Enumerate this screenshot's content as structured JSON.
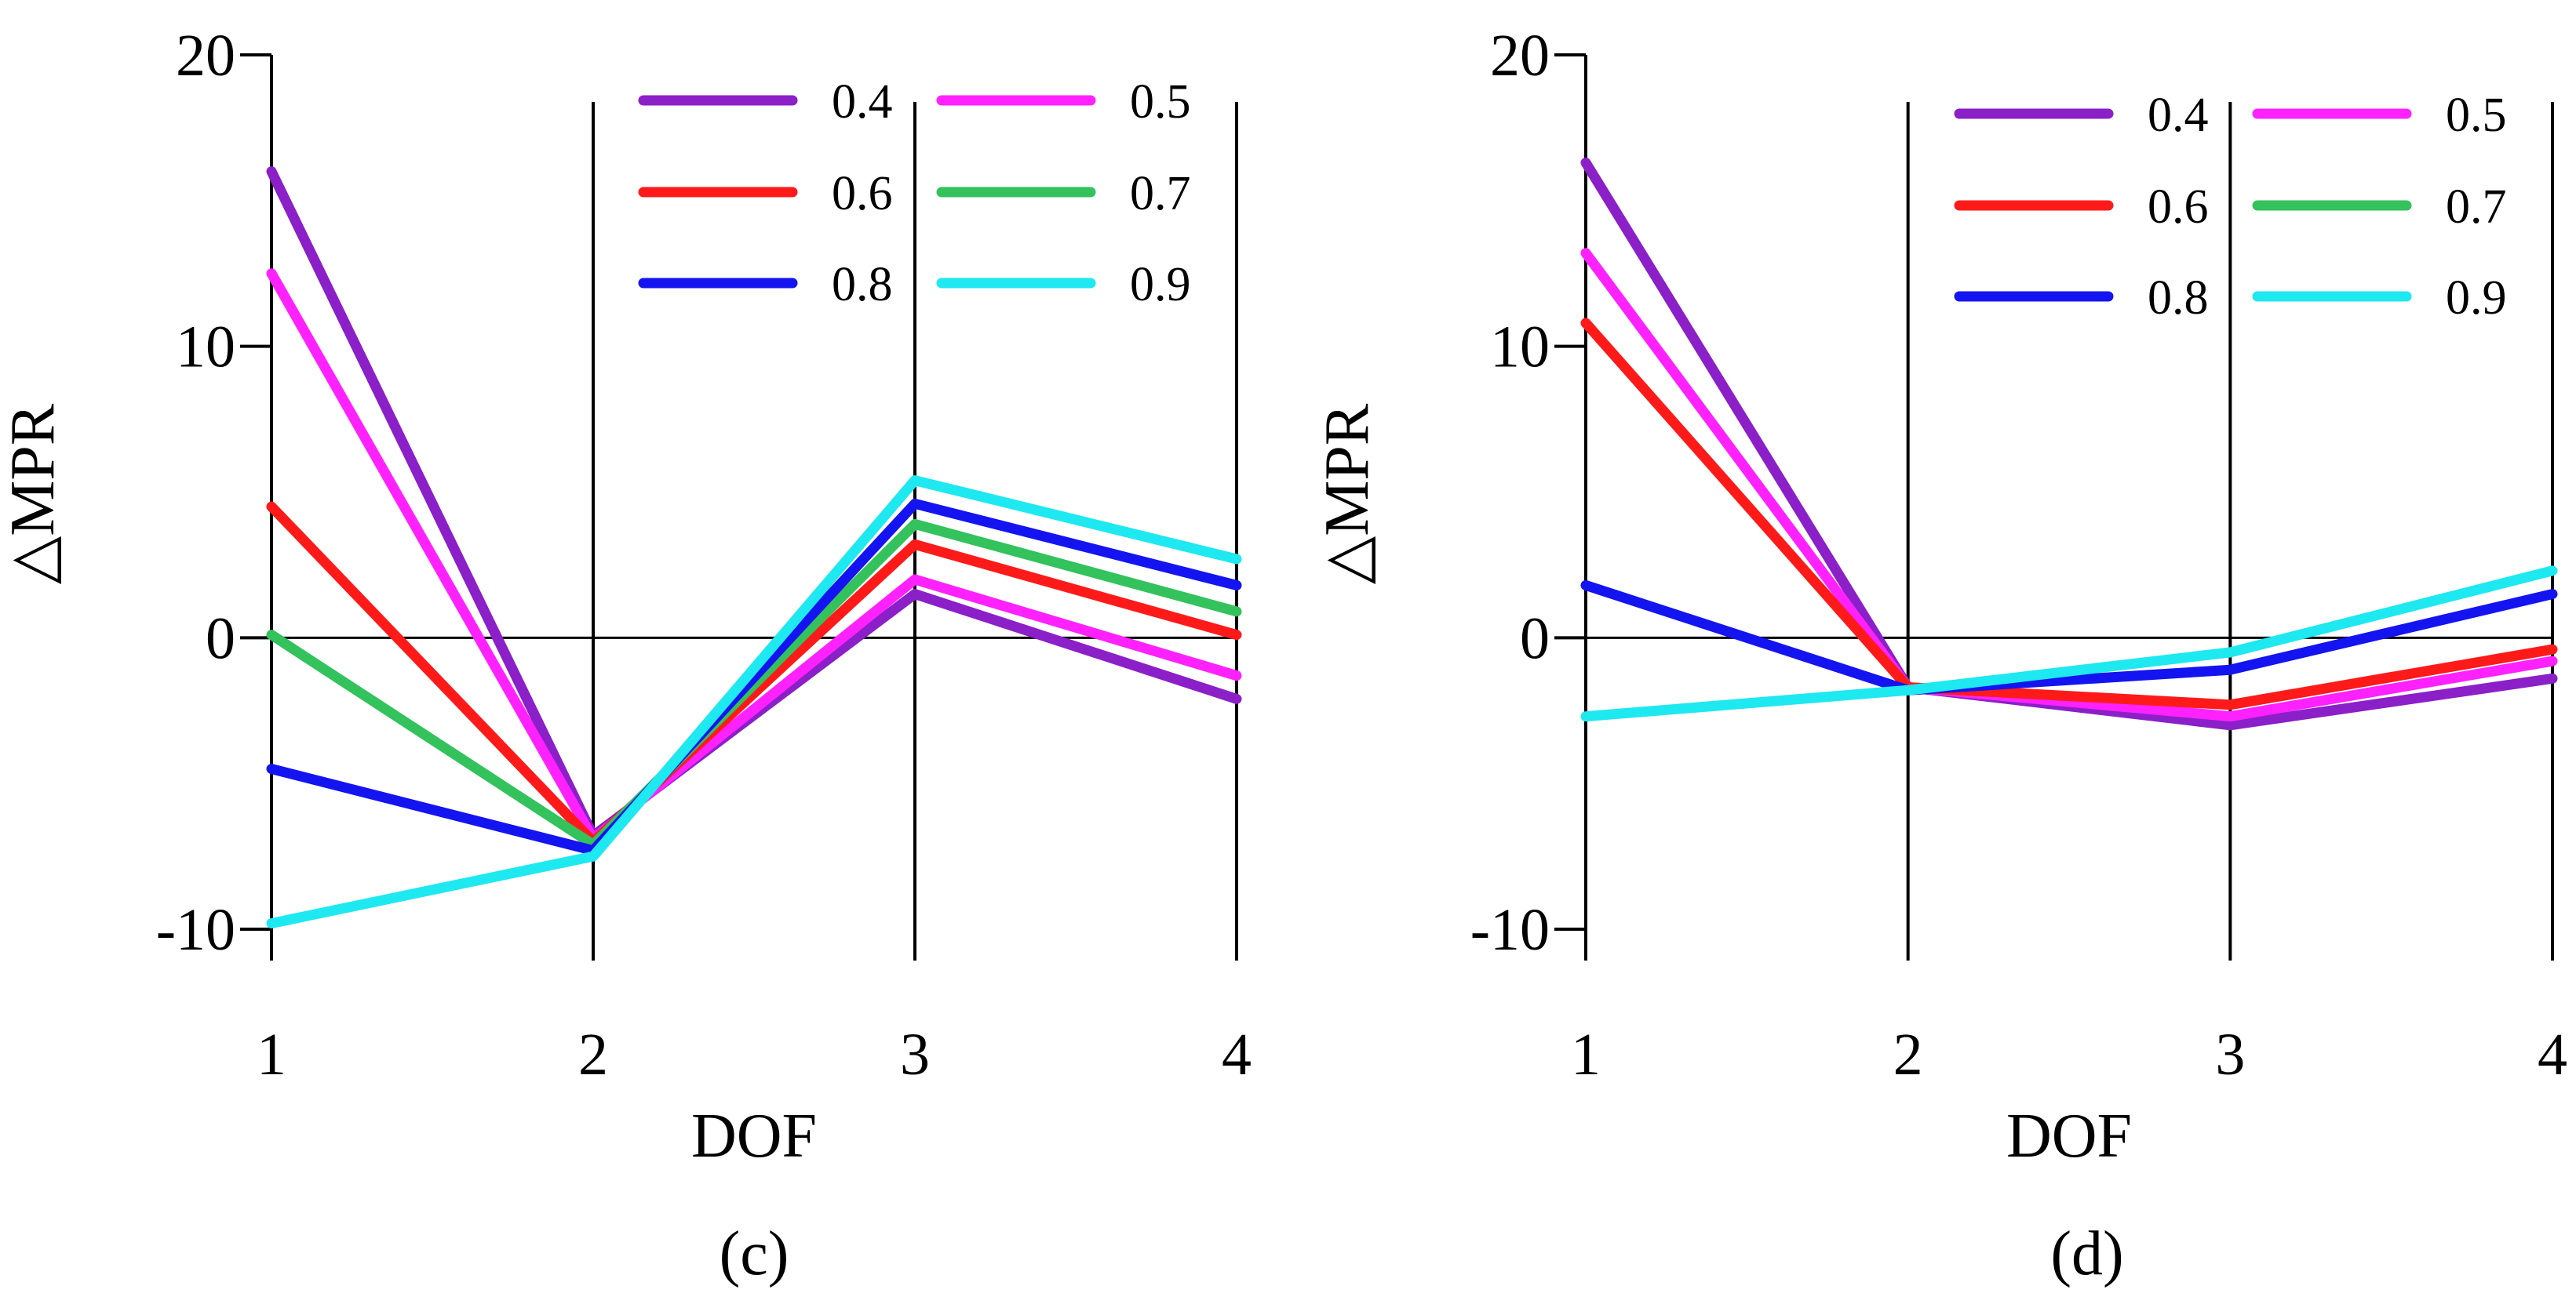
{
  "colors": {
    "0.4": "#8b1fc8",
    "0.5": "#ff22ff",
    "0.6": "#ff1a1a",
    "0.7": "#33c25c",
    "0.8": "#1414f0",
    "0.9": "#1ee8f0",
    "axis": "#000000"
  },
  "chart_data": [
    {
      "type": "line",
      "panel_label": "(c)",
      "xlabel": "DOF",
      "ylabel": "△MPR",
      "x": [
        1,
        2,
        3,
        4
      ],
      "xticks": [
        "1",
        "2",
        "3",
        "4"
      ],
      "yticks": [
        "20",
        "10",
        "0",
        "-10"
      ],
      "ylim": [
        -10,
        20
      ],
      "xlim": [
        1,
        4
      ],
      "zero_line": true,
      "legend_placement": "top-right, 3 rows x 2 columns",
      "series": [
        {
          "name": "0.4",
          "values": [
            16.0,
            -6.8,
            1.5,
            -2.1
          ]
        },
        {
          "name": "0.5",
          "values": [
            12.5,
            -6.9,
            2.0,
            -1.3
          ]
        },
        {
          "name": "0.6",
          "values": [
            4.5,
            -7.0,
            3.2,
            0.1
          ]
        },
        {
          "name": "0.7",
          "values": [
            0.1,
            -7.1,
            3.9,
            0.9
          ]
        },
        {
          "name": "0.8",
          "values": [
            -4.5,
            -7.3,
            4.6,
            1.8
          ]
        },
        {
          "name": "0.9",
          "values": [
            -9.8,
            -7.5,
            5.4,
            2.7
          ]
        }
      ]
    },
    {
      "type": "line",
      "panel_label": "(d)",
      "xlabel": "DOF",
      "ylabel": "△MPR",
      "x": [
        1,
        2,
        3,
        4
      ],
      "xticks": [
        "1",
        "2",
        "3",
        "4"
      ],
      "yticks": [
        "20",
        "10",
        "0",
        "-10"
      ],
      "ylim": [
        -10,
        20
      ],
      "xlim": [
        1,
        4
      ],
      "zero_line": true,
      "legend_placement": "top-right, 3 rows x 2 columns",
      "series": [
        {
          "name": "0.4",
          "values": [
            16.3,
            -1.7,
            -3.0,
            -1.4
          ]
        },
        {
          "name": "0.5",
          "values": [
            13.2,
            -1.7,
            -2.7,
            -0.8
          ]
        },
        {
          "name": "0.6",
          "values": [
            10.8,
            -1.7,
            -2.3,
            -0.4
          ]
        },
        {
          "name": "0.7",
          "values": [
            null,
            null,
            null,
            null
          ]
        },
        {
          "name": "0.8",
          "values": [
            1.8,
            -1.8,
            -1.1,
            1.5
          ]
        },
        {
          "name": "0.9",
          "values": [
            -2.7,
            -1.8,
            -0.5,
            2.3
          ]
        }
      ]
    }
  ]
}
